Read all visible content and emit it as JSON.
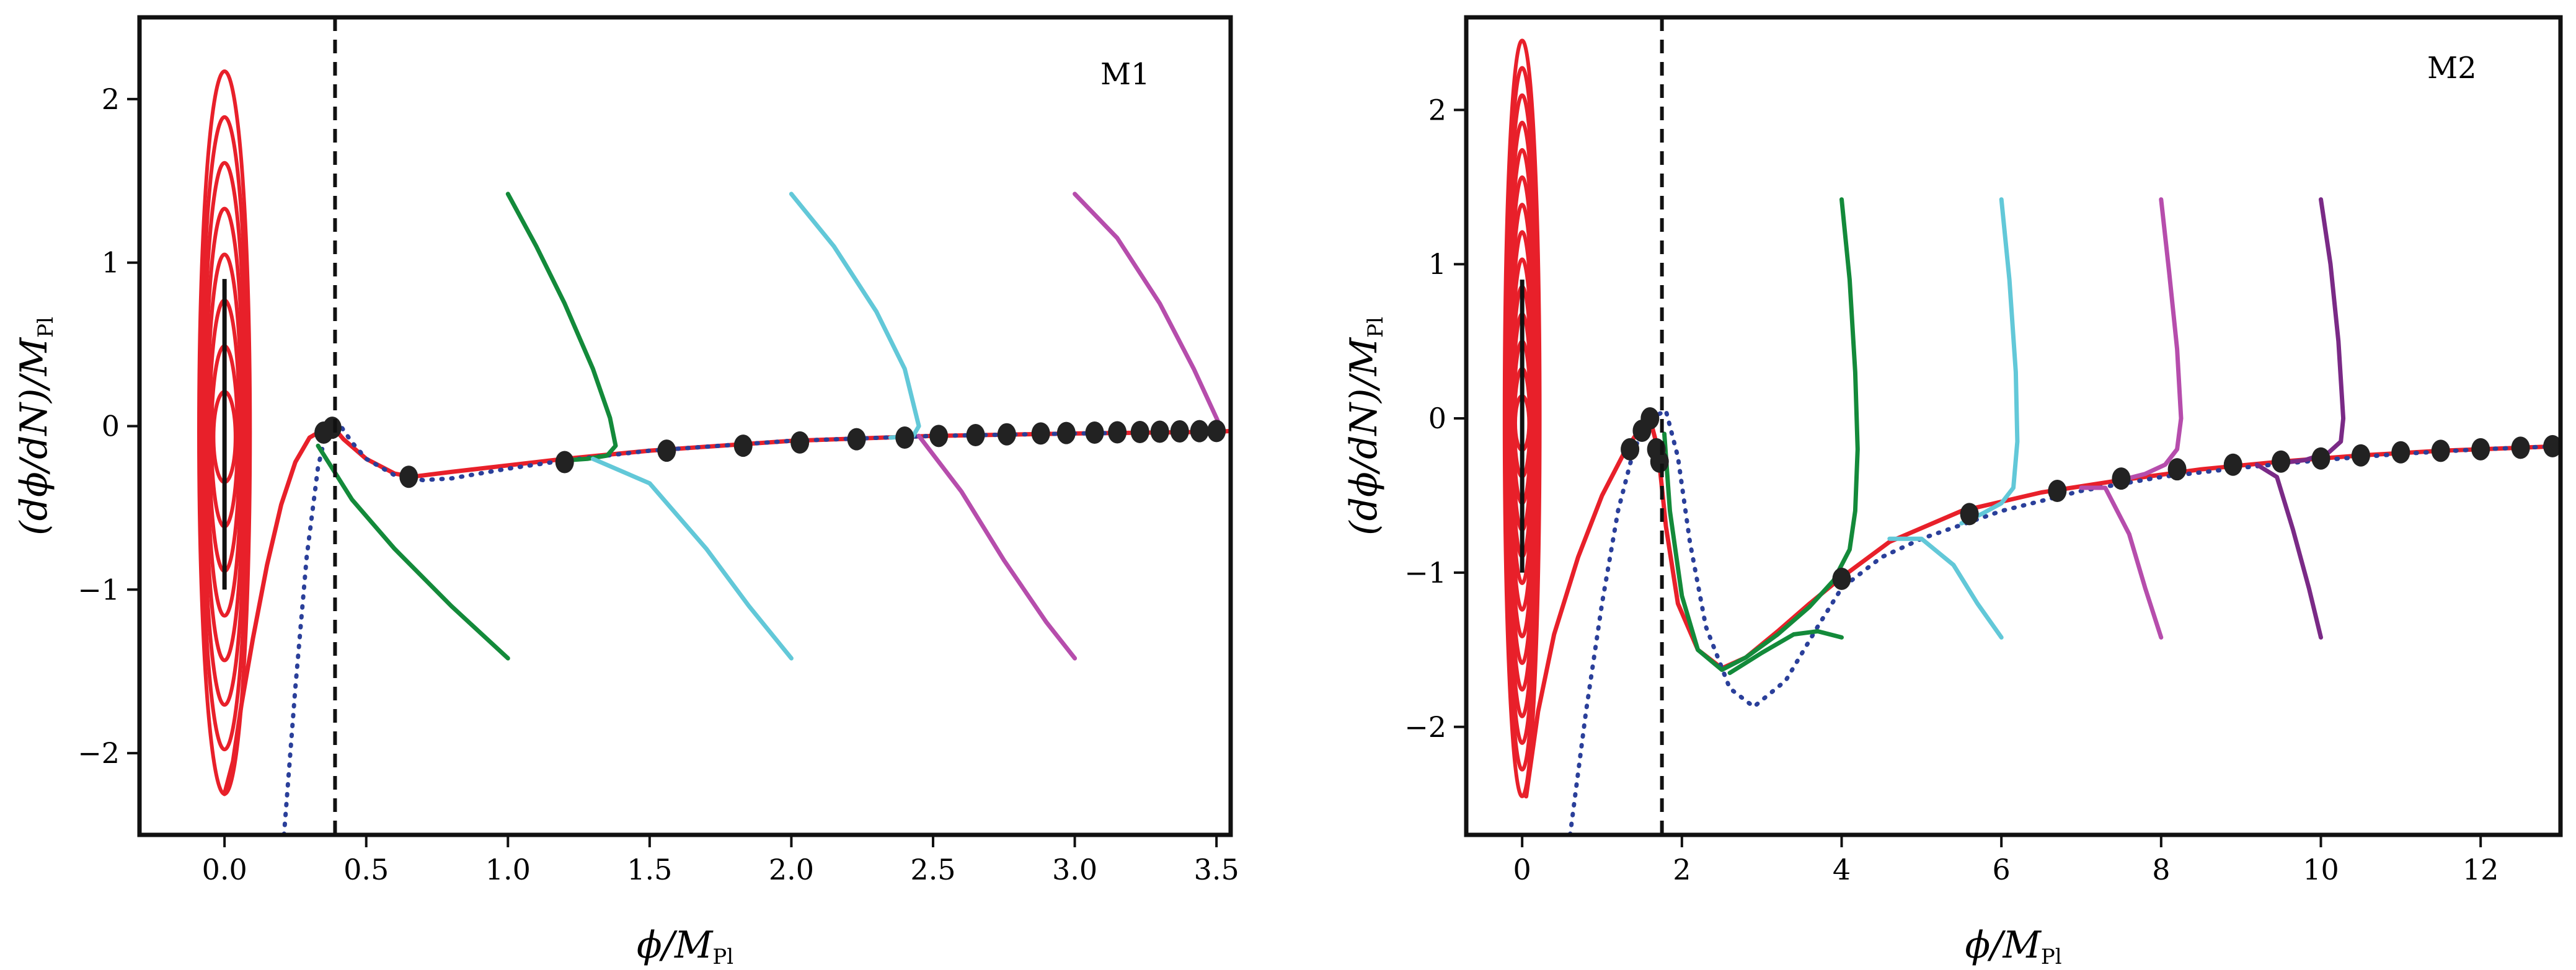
{
  "figure": {
    "description_free": true
  },
  "chart_data": [
    {
      "type": "line",
      "panel": "M1",
      "title": "M1",
      "xlabel": "ϕ/M",
      "xlabel_sub": "Pl",
      "ylabel": "(dϕ/dN)/M",
      "ylabel_sub": "Pl",
      "xlim": [
        -0.3,
        3.55
      ],
      "ylim": [
        -2.5,
        2.5
      ],
      "xticks": [
        0.0,
        0.5,
        1.0,
        1.5,
        2.0,
        2.5,
        3.0,
        3.5
      ],
      "xtick_labels": [
        "0.0",
        "0.5",
        "1.0",
        "1.5",
        "2.0",
        "2.5",
        "3.0",
        "3.5"
      ],
      "yticks": [
        -2,
        -1,
        0,
        1,
        2
      ],
      "ytick_labels": [
        "−2",
        "−1",
        "0",
        "1",
        "2"
      ],
      "vline": 0.39,
      "grid": false,
      "spiral": {
        "center": [
          0.0,
          0.0
        ],
        "half_width": 0.09,
        "y_extent": [
          -2.25,
          2.17
        ],
        "rings": 8,
        "color": "#e8202a"
      },
      "series": [
        {
          "name": "red",
          "color": "#e8202a",
          "style": "solid",
          "x": [
            0.0,
            0.03,
            0.06,
            0.1,
            0.15,
            0.2,
            0.25,
            0.3,
            0.34,
            0.38,
            0.42,
            0.5,
            0.6,
            0.66,
            0.8,
            1.0,
            1.2,
            1.5,
            2.0,
            2.5,
            3.0,
            3.5,
            3.55
          ],
          "y": [
            -2.25,
            -2.05,
            -1.7,
            -1.3,
            -0.85,
            -0.48,
            -0.22,
            -0.07,
            -0.03,
            0.0,
            -0.08,
            -0.2,
            -0.29,
            -0.31,
            -0.28,
            -0.24,
            -0.2,
            -0.15,
            -0.09,
            -0.06,
            -0.045,
            -0.035,
            -0.03
          ]
        },
        {
          "name": "blue-dotted",
          "color": "#2a3f9a",
          "style": "dotted",
          "x": [
            0.21,
            0.25,
            0.29,
            0.33,
            0.37,
            0.41,
            0.45,
            0.5,
            0.6,
            0.7,
            0.8,
            1.0,
            1.2,
            1.5,
            2.0,
            2.5,
            3.0,
            3.5
          ],
          "y": [
            -2.5,
            -1.6,
            -0.8,
            -0.25,
            0.05,
            0.0,
            -0.1,
            -0.2,
            -0.3,
            -0.33,
            -0.32,
            -0.26,
            -0.21,
            -0.15,
            -0.09,
            -0.06,
            -0.045,
            -0.035
          ]
        },
        {
          "name": "green",
          "color": "#138a3a",
          "style": "solid",
          "x": [
            1.0,
            1.1,
            1.2,
            1.3,
            1.36,
            1.38,
            1.35,
            1.28,
            1.2
          ],
          "y": [
            1.42,
            1.1,
            0.75,
            0.35,
            0.05,
            -0.12,
            -0.18,
            -0.2,
            -0.21
          ]
        },
        {
          "name": "green-branch",
          "color": "#138a3a",
          "style": "solid",
          "x": [
            0.33,
            0.45,
            0.6,
            0.8,
            1.0
          ],
          "y": [
            -0.12,
            -0.45,
            -0.75,
            -1.1,
            -1.42
          ]
        },
        {
          "name": "cyan",
          "color": "#62c8d8",
          "style": "solid",
          "x": [
            2.0,
            2.15,
            2.3,
            2.4,
            2.45,
            2.43,
            2.35
          ],
          "y": [
            1.42,
            1.1,
            0.7,
            0.35,
            0.0,
            -0.06,
            -0.07
          ]
        },
        {
          "name": "cyan-branch",
          "color": "#62c8d8",
          "style": "solid",
          "x": [
            1.3,
            1.5,
            1.7,
            1.85,
            2.0
          ],
          "y": [
            -0.2,
            -0.35,
            -0.75,
            -1.1,
            -1.42
          ]
        },
        {
          "name": "magenta",
          "color": "#b64dac",
          "style": "solid",
          "x": [
            3.0,
            3.15,
            3.3,
            3.42,
            3.5,
            3.52
          ],
          "y": [
            1.42,
            1.15,
            0.75,
            0.35,
            0.05,
            -0.03
          ]
        },
        {
          "name": "magenta-branch",
          "color": "#b64dac",
          "style": "solid",
          "x": [
            2.45,
            2.6,
            2.75,
            2.9,
            3.0
          ],
          "y": [
            -0.06,
            -0.4,
            -0.82,
            -1.2,
            -1.42
          ]
        }
      ],
      "markers": {
        "color": "#222222",
        "x": [
          0.35,
          0.38,
          0.65,
          1.2,
          1.56,
          1.83,
          2.03,
          2.23,
          2.4,
          2.52,
          2.65,
          2.76,
          2.88,
          2.97,
          3.07,
          3.15,
          3.23,
          3.3,
          3.37,
          3.44,
          3.5
        ],
        "y": [
          -0.04,
          -0.01,
          -0.31,
          -0.22,
          -0.15,
          -0.12,
          -0.1,
          -0.08,
          -0.07,
          -0.06,
          -0.055,
          -0.05,
          -0.045,
          -0.042,
          -0.04,
          -0.038,
          -0.036,
          -0.034,
          -0.032,
          -0.031,
          -0.03
        ]
      }
    },
    {
      "type": "line",
      "panel": "M2",
      "title": "M2",
      "xlabel": "ϕ/M",
      "xlabel_sub": "Pl",
      "ylabel": "(dϕ/dN)/M",
      "ylabel_sub": "Pl",
      "xlim": [
        -0.7,
        13.0
      ],
      "ylim": [
        -2.7,
        2.6
      ],
      "xticks": [
        0,
        2,
        4,
        6,
        8,
        10,
        12
      ],
      "xtick_labels": [
        "0",
        "2",
        "4",
        "6",
        "8",
        "10",
        "12"
      ],
      "yticks": [
        -2,
        -1,
        0,
        1,
        2
      ],
      "ytick_labels": [
        "−2",
        "−1",
        "0",
        "1",
        "2"
      ],
      "vline": 1.75,
      "grid": false,
      "spiral": {
        "center": [
          0.0,
          0.0
        ],
        "half_width": 0.22,
        "y_extent": [
          -2.45,
          2.45
        ],
        "rings": 14,
        "color": "#e8202a"
      },
      "series": [
        {
          "name": "red",
          "color": "#e8202a",
          "style": "solid",
          "x": [
            0.05,
            0.2,
            0.4,
            0.7,
            1.0,
            1.3,
            1.5,
            1.6,
            1.7,
            1.8,
            1.95,
            2.2,
            2.5,
            2.8,
            3.2,
            3.6,
            4.0,
            4.6,
            5.5,
            6.5,
            7.5,
            8.5,
            9.5,
            10.5,
            11.5,
            12.5,
            13.0
          ],
          "y": [
            -2.45,
            -1.9,
            -1.4,
            -0.9,
            -0.5,
            -0.2,
            -0.05,
            0.0,
            -0.2,
            -0.7,
            -1.2,
            -1.5,
            -1.62,
            -1.55,
            -1.38,
            -1.2,
            -1.03,
            -0.8,
            -0.6,
            -0.48,
            -0.4,
            -0.33,
            -0.28,
            -0.24,
            -0.21,
            -0.19,
            -0.18
          ]
        },
        {
          "name": "blue-dotted",
          "color": "#2a3f9a",
          "style": "dotted",
          "x": [
            0.6,
            0.8,
            1.0,
            1.2,
            1.4,
            1.6,
            1.8,
            1.95,
            2.1,
            2.3,
            2.6,
            2.9,
            3.3,
            3.7,
            4.0,
            4.5,
            5.0,
            6.0,
            7.0,
            8.0,
            9.0,
            10.0,
            11.0,
            12.0,
            13.0
          ],
          "y": [
            -2.7,
            -1.9,
            -1.2,
            -0.6,
            -0.2,
            0.0,
            0.05,
            -0.25,
            -0.8,
            -1.35,
            -1.75,
            -1.87,
            -1.7,
            -1.35,
            -1.1,
            -0.9,
            -0.78,
            -0.6,
            -0.47,
            -0.38,
            -0.32,
            -0.27,
            -0.23,
            -0.2,
            -0.18
          ]
        },
        {
          "name": "green",
          "color": "#138a3a",
          "style": "solid",
          "x": [
            4.0,
            4.1,
            4.17,
            4.2,
            4.17,
            4.1,
            3.9,
            3.6,
            3.2,
            2.8,
            2.5,
            2.2,
            2.0,
            1.85,
            1.78
          ],
          "y": [
            1.42,
            0.9,
            0.3,
            -0.2,
            -0.6,
            -0.85,
            -1.05,
            -1.22,
            -1.4,
            -1.55,
            -1.63,
            -1.5,
            -1.15,
            -0.6,
            -0.1
          ]
        },
        {
          "name": "green-branch",
          "color": "#138a3a",
          "style": "solid",
          "x": [
            2.6,
            3.0,
            3.4,
            3.7,
            4.0
          ],
          "y": [
            -1.65,
            -1.52,
            -1.4,
            -1.38,
            -1.42
          ]
        },
        {
          "name": "cyan",
          "color": "#62c8d8",
          "style": "solid",
          "x": [
            6.0,
            6.1,
            6.18,
            6.2,
            6.15,
            6.0,
            5.75,
            5.5
          ],
          "y": [
            1.42,
            0.9,
            0.3,
            -0.15,
            -0.45,
            -0.55,
            -0.62,
            -0.68
          ]
        },
        {
          "name": "cyan-branch",
          "color": "#62c8d8",
          "style": "solid",
          "x": [
            4.6,
            5.0,
            5.4,
            5.7,
            6.0
          ],
          "y": [
            -0.78,
            -0.78,
            -0.95,
            -1.2,
            -1.42
          ]
        },
        {
          "name": "magenta",
          "color": "#b64dac",
          "style": "solid",
          "x": [
            8.0,
            8.1,
            8.2,
            8.25,
            8.2,
            8.05,
            7.8,
            7.5
          ],
          "y": [
            1.42,
            0.95,
            0.45,
            0.0,
            -0.2,
            -0.3,
            -0.36,
            -0.4
          ]
        },
        {
          "name": "magenta-branch",
          "color": "#b64dac",
          "style": "solid",
          "x": [
            7.0,
            7.3,
            7.6,
            7.8,
            8.0
          ],
          "y": [
            -0.45,
            -0.45,
            -0.75,
            -1.1,
            -1.42
          ]
        },
        {
          "name": "purple",
          "color": "#7a2a86",
          "style": "solid",
          "x": [
            10.0,
            10.12,
            10.22,
            10.28,
            10.25,
            10.1,
            9.8,
            9.5
          ],
          "y": [
            1.42,
            1.0,
            0.5,
            0.0,
            -0.15,
            -0.22,
            -0.27,
            -0.29
          ]
        },
        {
          "name": "purple-branch",
          "color": "#7a2a86",
          "style": "solid",
          "x": [
            9.2,
            9.45,
            9.65,
            9.85,
            10.0
          ],
          "y": [
            -0.3,
            -0.38,
            -0.72,
            -1.1,
            -1.42
          ]
        }
      ],
      "markers": {
        "color": "#222222",
        "x": [
          1.35,
          1.5,
          1.6,
          1.68,
          1.72,
          4.0,
          5.6,
          6.7,
          7.5,
          8.2,
          8.9,
          9.5,
          10.0,
          10.5,
          11.0,
          11.5,
          12.0,
          12.5,
          12.9
        ],
        "y": [
          -0.2,
          -0.08,
          0.0,
          -0.2,
          -0.28,
          -1.04,
          -0.62,
          -0.47,
          -0.39,
          -0.33,
          -0.3,
          -0.28,
          -0.26,
          -0.24,
          -0.22,
          -0.21,
          -0.2,
          -0.19,
          -0.18
        ]
      }
    }
  ]
}
